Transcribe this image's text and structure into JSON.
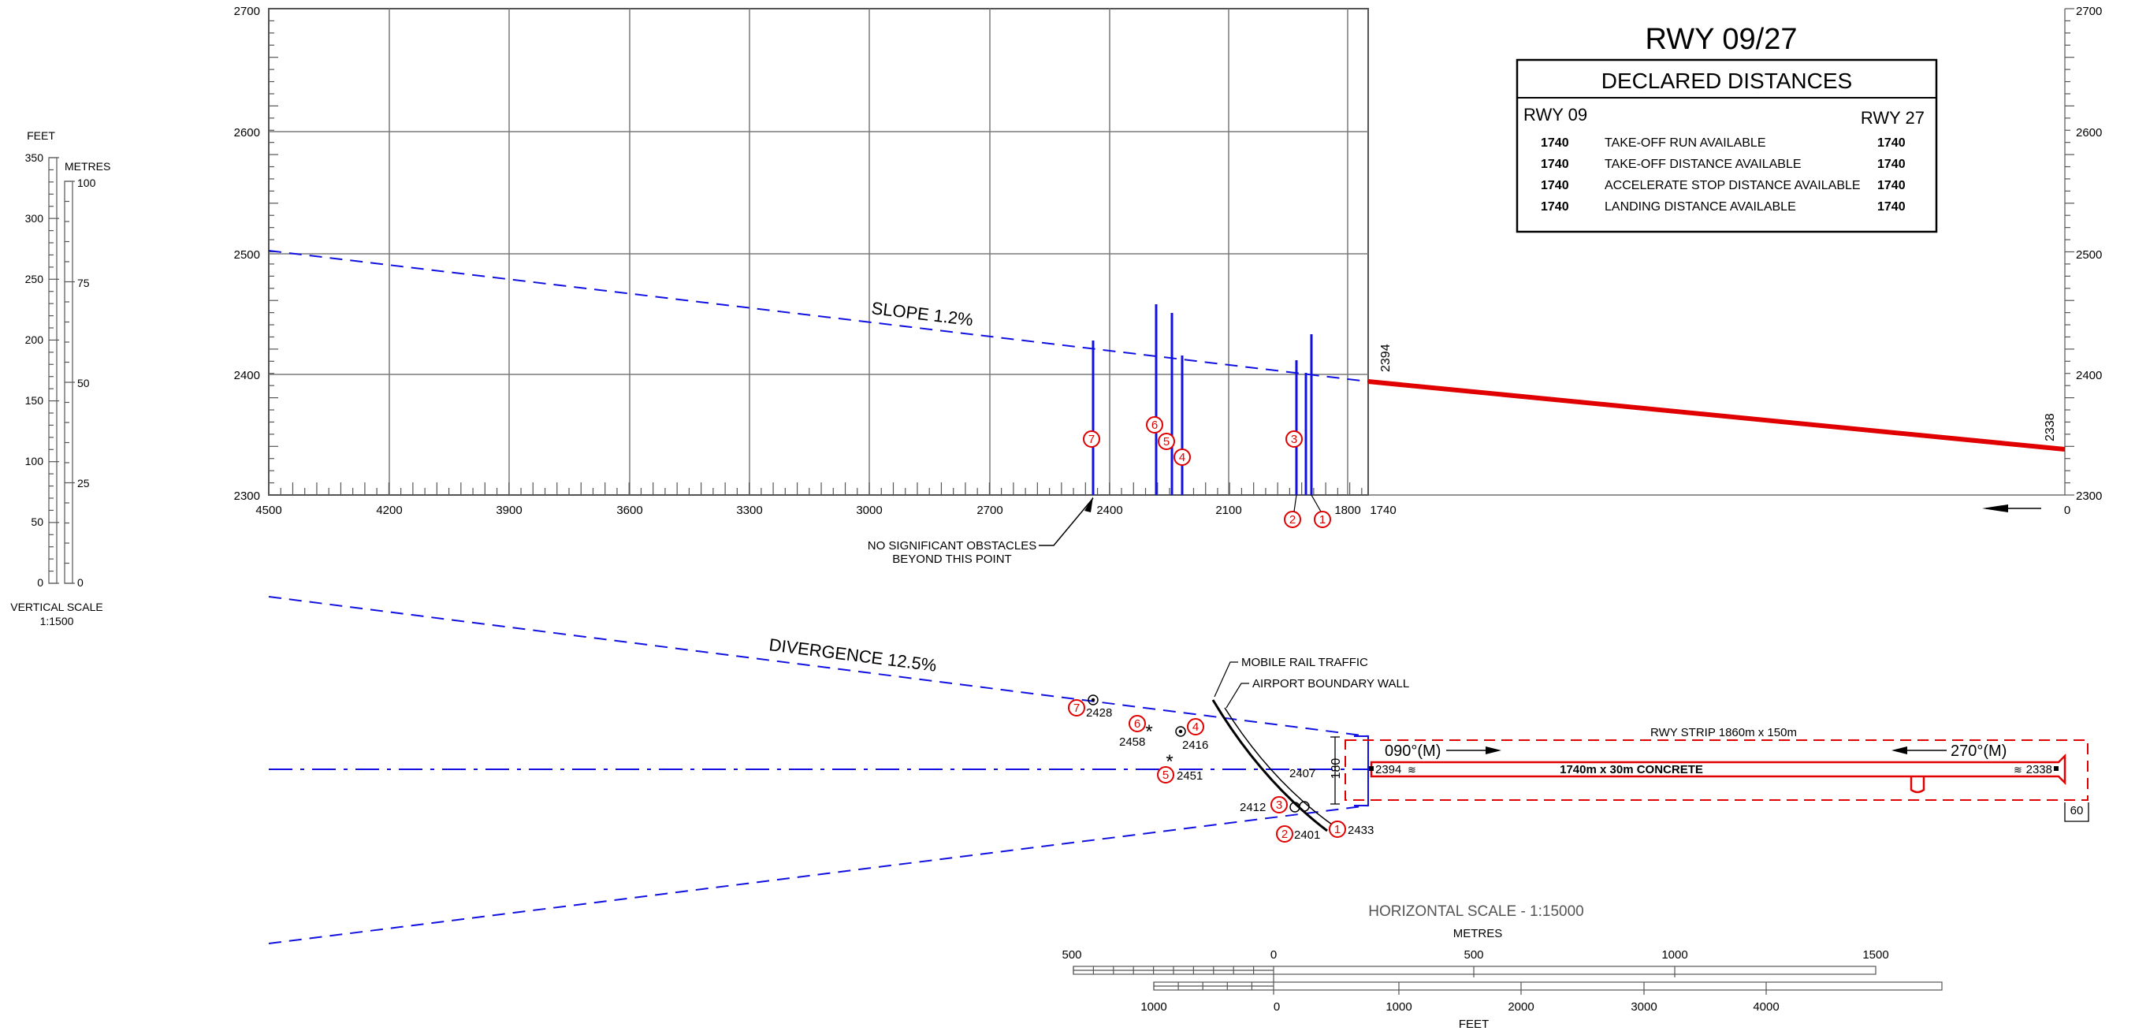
{
  "title": "RWY 09/27",
  "declared": {
    "title": "DECLARED DISTANCES",
    "left_head": "RWY 09",
    "right_head": "RWY 27",
    "rows": [
      {
        "left": "1740",
        "label": "TAKE-OFF RUN AVAILABLE",
        "right": "1740"
      },
      {
        "left": "1740",
        "label": "TAKE-OFF DISTANCE AVAILABLE",
        "right": "1740"
      },
      {
        "left": "1740",
        "label": "ACCELERATE STOP DISTANCE AVAILABLE",
        "right": "1740"
      },
      {
        "left": "1740",
        "label": "LANDING DISTANCE AVAILABLE",
        "right": "1740"
      }
    ]
  },
  "profile": {
    "elev_ticks": [
      "2700",
      "2600",
      "2500",
      "2400",
      "2300"
    ],
    "dist_ticks": [
      "4500",
      "4200",
      "3900",
      "3600",
      "3300",
      "3000",
      "2700",
      "2400",
      "2100",
      "1800",
      "1740",
      "0"
    ],
    "slope_label": "SLOPE 1.2%",
    "threshold_west": "2394",
    "threshold_east": "2338",
    "no_obstacle_note": [
      "NO SIGNIFICANT OBSTACLES",
      "BEYOND THIS POINT"
    ],
    "obstacles": [
      {
        "id": "1",
        "dist": 1776,
        "elev": 2433
      },
      {
        "id": "2",
        "dist": 1810,
        "elev": 2401
      },
      {
        "id": "3",
        "dist": 1795,
        "elev": 2412
      },
      {
        "id": "4",
        "dist": 2210,
        "elev": 2416
      },
      {
        "id": "5",
        "dist": 2240,
        "elev": 2451
      },
      {
        "id": "6",
        "dist": 2280,
        "elev": 2458
      },
      {
        "id": "7",
        "dist": 2420,
        "elev": 2428
      }
    ]
  },
  "vertical_scale": {
    "feet_label": "FEET",
    "metres_label": "METRES",
    "feet_ticks": [
      "350",
      "300",
      "250",
      "200",
      "150",
      "100",
      "50",
      "0"
    ],
    "metre_ticks": [
      "100",
      "75",
      "50",
      "25",
      "0"
    ],
    "caption": [
      "VERTICAL SCALE",
      "1:1500"
    ]
  },
  "plan": {
    "divergence_label": "DIVERGENCE 12.5%",
    "mobile_rail": "MOBILE RAIL TRAFFIC",
    "boundary_wall": "AIRPORT BOUNDARY WALL",
    "strip_label": "RWY STRIP 1860m x 150m",
    "runway_label": "1740m x 30m CONCRETE",
    "hdg_09": "090°(M)",
    "hdg_27": "270°(M)",
    "thr_09_elev": "2394",
    "thr_27_elev": "2338",
    "width_180": "180",
    "width_60": "60",
    "obstacles": [
      {
        "id": "7",
        "elev": "2428"
      },
      {
        "id": "6",
        "elev": "2458"
      },
      {
        "id": "4",
        "elev": "2416"
      },
      {
        "id": "5",
        "elev": "2451"
      },
      {
        "id": "3",
        "elev": "2412"
      },
      {
        "id": "2",
        "elev": "2401"
      },
      {
        "id": "1",
        "elev": "2433"
      }
    ],
    "extra_elev": "2407"
  },
  "horizontal_scale": {
    "title": "HORIZONTAL SCALE - 1:15000",
    "metres_label": "METRES",
    "feet_label": "FEET",
    "metre_ticks": [
      "500",
      "0",
      "500",
      "1000",
      "1500"
    ],
    "feet_ticks": [
      "1000",
      "0",
      "1000",
      "2000",
      "3000",
      "4000"
    ]
  },
  "colors": {
    "profile_line": "#1010e0",
    "runway": "#e00000",
    "grid": "#808080"
  }
}
